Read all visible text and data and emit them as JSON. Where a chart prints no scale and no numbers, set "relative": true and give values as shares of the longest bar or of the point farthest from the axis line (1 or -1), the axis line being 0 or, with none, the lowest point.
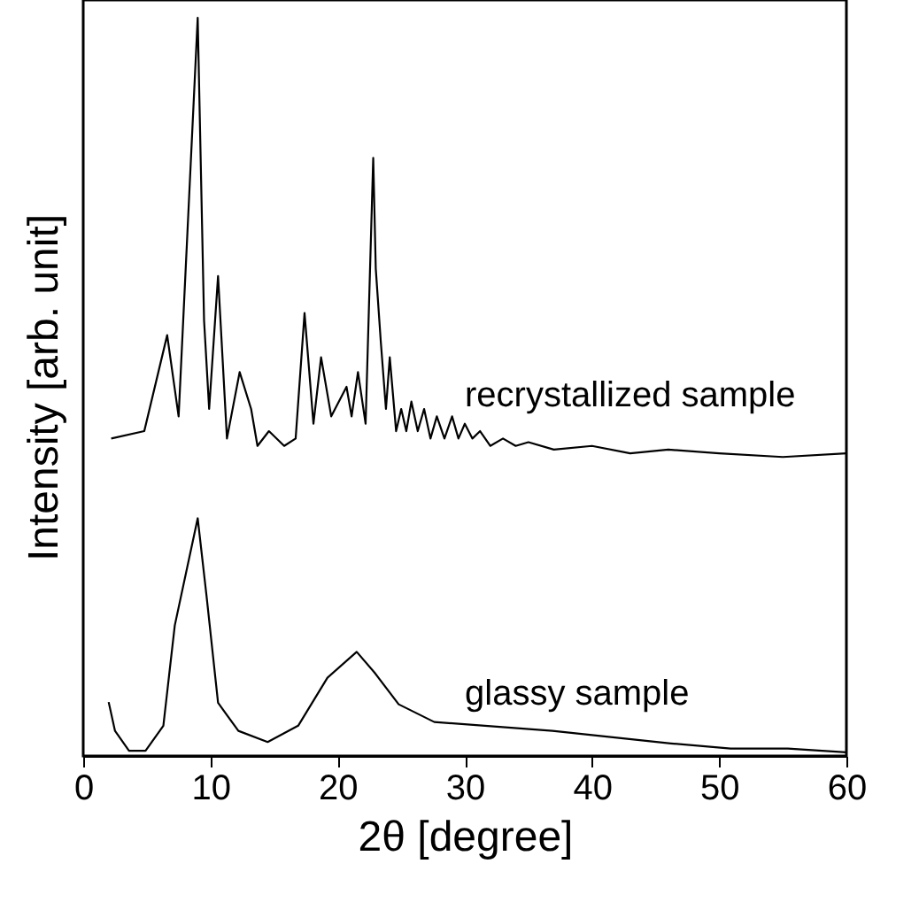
{
  "chart_data": {
    "type": "line",
    "xlabel": "2θ [degree]",
    "ylabel": "Intensity [arb. unit]",
    "xlim": [
      0,
      60
    ],
    "xticks": [
      0,
      10,
      20,
      30,
      40,
      50,
      60
    ],
    "relative": true,
    "grid": false,
    "series": [
      {
        "name": "recrystallized sample",
        "color": "#000000",
        "x": [
          2.2,
          4.8,
          6.6,
          7.5,
          9.0,
          9.5,
          9.9,
          10.6,
          11.3,
          12.3,
          13.2,
          13.7,
          14.6,
          15.8,
          16.7,
          17.4,
          18.1,
          18.7,
          19.5,
          20.7,
          21.1,
          21.6,
          22.2,
          22.8,
          23.0,
          23.4,
          23.8,
          24.1,
          24.6,
          25.0,
          25.4,
          25.8,
          26.3,
          26.8,
          27.3,
          27.8,
          28.4,
          29.0,
          29.5,
          30.0,
          30.6,
          31.2,
          32.0,
          33.0,
          34.0,
          35.0,
          37.0,
          40.0,
          43.0,
          46.0,
          50.0,
          55.0,
          60.0
        ],
        "values": [
          0.43,
          0.44,
          0.57,
          0.46,
          1.0,
          0.59,
          0.47,
          0.65,
          0.43,
          0.52,
          0.47,
          0.42,
          0.44,
          0.42,
          0.43,
          0.6,
          0.45,
          0.54,
          0.46,
          0.5,
          0.46,
          0.52,
          0.45,
          0.81,
          0.66,
          0.56,
          0.47,
          0.54,
          0.44,
          0.47,
          0.44,
          0.48,
          0.44,
          0.47,
          0.43,
          0.46,
          0.43,
          0.46,
          0.43,
          0.45,
          0.43,
          0.44,
          0.42,
          0.43,
          0.42,
          0.425,
          0.415,
          0.42,
          0.41,
          0.415,
          0.41,
          0.405,
          0.41
        ]
      },
      {
        "name": "glassy sample",
        "color": "#000000",
        "x": [
          2.0,
          2.5,
          3.6,
          4.9,
          6.3,
          7.2,
          9.0,
          9.7,
          10.6,
          12.2,
          14.5,
          16.9,
          19.2,
          21.5,
          22.9,
          24.8,
          27.6,
          36.9,
          46.2,
          50.9,
          55.4,
          60.0
        ],
        "values": [
          0.073,
          0.034,
          0.007,
          0.007,
          0.041,
          0.177,
          0.322,
          0.216,
          0.072,
          0.034,
          0.019,
          0.041,
          0.106,
          0.141,
          0.113,
          0.07,
          0.046,
          0.034,
          0.017,
          0.01,
          0.01,
          0.005
        ]
      }
    ]
  }
}
